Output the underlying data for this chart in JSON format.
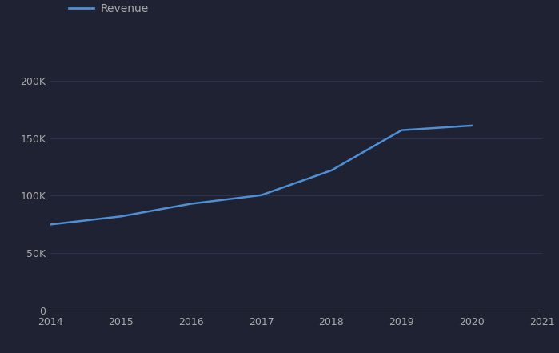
{
  "years": [
    2014,
    2015,
    2016,
    2017,
    2018,
    2019,
    2020
  ],
  "revenue": [
    75000,
    82000,
    93000,
    100500,
    122000,
    157000,
    161000
  ],
  "line_color": "#4f8fd4",
  "background_color": "#1e2233",
  "plot_bg_color": "#1e2233",
  "grid_color": "#2e3555",
  "text_color": "#aaaaaa",
  "legend_label": "Revenue",
  "xlim": [
    2014,
    2021
  ],
  "ylim": [
    0,
    215000
  ],
  "yticks": [
    0,
    50000,
    100000,
    150000,
    200000
  ],
  "xticks": [
    2014,
    2015,
    2016,
    2017,
    2018,
    2019,
    2020,
    2021
  ],
  "line_width": 1.8,
  "legend_line_color": "#4f8fd4"
}
